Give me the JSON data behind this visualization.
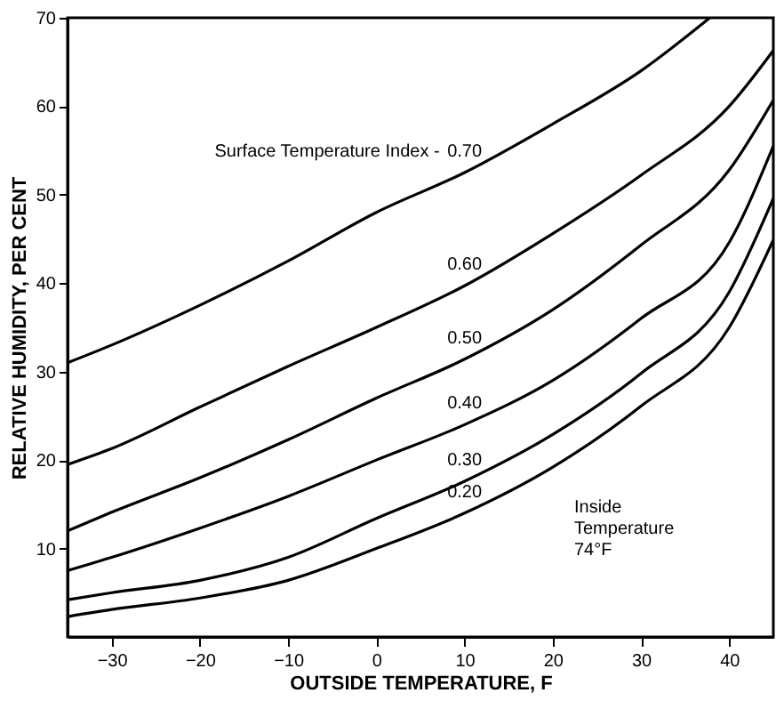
{
  "chart_data": {
    "type": "line",
    "xlabel": "OUTSIDE TEMPERATURE,  F",
    "ylabel": "RELATIVE HUMIDITY, PER CENT",
    "x": [
      -35,
      -30,
      -20,
      -10,
      0,
      10,
      20,
      30,
      40,
      45
    ],
    "series": [
      {
        "name": "0.70",
        "color": "#000000",
        "x": [
          -35,
          -30,
          -20,
          -10,
          0,
          10,
          20,
          30,
          37.8
        ],
        "values": [
          31,
          33,
          37.5,
          42.5,
          48,
          52.5,
          58,
          64,
          70
        ]
      },
      {
        "name": "0.60",
        "color": "#000000",
        "values": [
          19.5,
          21.3,
          26,
          30.6,
          35,
          39.7,
          45.6,
          52.2,
          60,
          66.3
        ]
      },
      {
        "name": "0.50",
        "color": "#000000",
        "values": [
          12,
          14.1,
          18,
          22.3,
          27,
          31.4,
          37,
          44.3,
          52.8,
          60.7
        ]
      },
      {
        "name": "0.40",
        "color": "#000000",
        "values": [
          7.5,
          9,
          12.3,
          15.9,
          20,
          24,
          29,
          36,
          44.6,
          55.5
        ]
      },
      {
        "name": "0.30",
        "color": "#000000",
        "values": [
          4.2,
          5,
          6.4,
          9,
          13.4,
          17.6,
          22.9,
          29.8,
          39,
          49.6
        ]
      },
      {
        "name": "0.20",
        "color": "#000000",
        "values": [
          2.3,
          3.1,
          4.4,
          6.4,
          10,
          14,
          19.2,
          26.1,
          35,
          44.9
        ]
      }
    ],
    "annotations": [
      "Surface Temperature Index -",
      "Inside\nTemperature\n74°F"
    ],
    "xlim": [
      -35,
      45
    ],
    "xticks": [
      -30,
      -20,
      -10,
      0,
      10,
      20,
      30,
      40
    ],
    "ylim": [
      0,
      70
    ],
    "yticks": [
      10,
      20,
      30,
      40,
      50,
      60,
      70
    ],
    "grid": false,
    "marker": "none",
    "line_style": "solid"
  }
}
